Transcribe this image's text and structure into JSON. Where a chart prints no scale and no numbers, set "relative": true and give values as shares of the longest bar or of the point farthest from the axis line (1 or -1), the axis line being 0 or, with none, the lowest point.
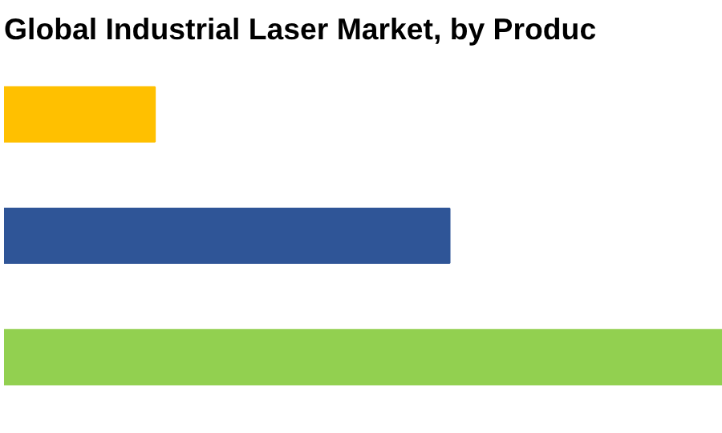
{
  "chart_data": {
    "type": "bar",
    "orientation": "horizontal",
    "relative": true,
    "title": "Global Industrial Laser Market, by Produc",
    "categories": [
      null,
      null,
      null
    ],
    "values": [
      0.21,
      0.62,
      1
    ],
    "colors": [
      "#ffc000",
      "#2f5597",
      "#92d050"
    ],
    "grid": false
  }
}
